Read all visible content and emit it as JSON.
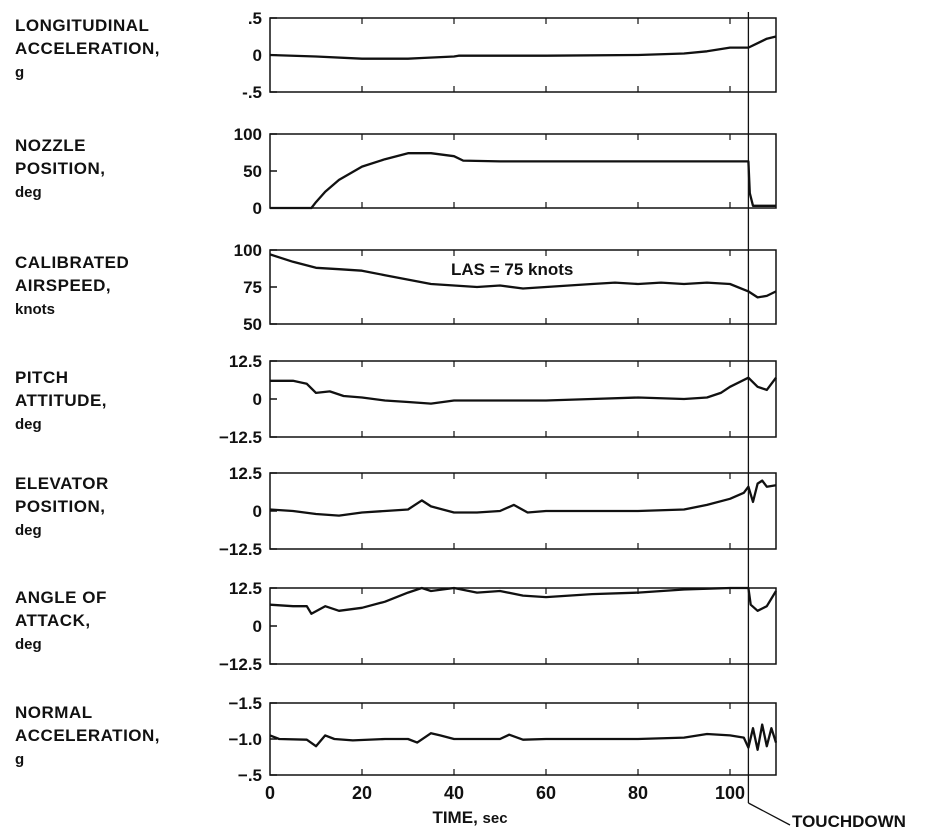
{
  "chart_data": {
    "type": "line",
    "x_axis": {
      "label": "TIME",
      "unit": "sec",
      "range": [
        0,
        110
      ],
      "ticks": [
        "0",
        "20",
        "40",
        "60",
        "80",
        "100"
      ]
    },
    "touchdown": {
      "time": 104,
      "label": "TOUCHDOWN"
    },
    "annotation": {
      "text": "LAS = 75 knots",
      "panel": 2,
      "x": 35,
      "y": 87
    },
    "panels": [
      {
        "label": [
          "LONGITUDINAL",
          "ACCELERATION,"
        ],
        "unit": "g",
        "ylim": [
          -0.5,
          0.5
        ],
        "inverted": false,
        "ticks": [
          [
            0.5,
            ".5"
          ],
          [
            0,
            "0"
          ],
          [
            -0.5,
            "-.5"
          ]
        ],
        "series": {
          "x": [
            0,
            10,
            20,
            30,
            33,
            40,
            41,
            60,
            80,
            90,
            95,
            100,
            104,
            106,
            108,
            110
          ],
          "y": [
            0,
            -0.02,
            -0.05,
            -0.05,
            -0.04,
            -0.02,
            -0.01,
            -0.01,
            0.0,
            0.02,
            0.05,
            0.1,
            0.1,
            0.16,
            0.22,
            0.25
          ]
        }
      },
      {
        "label": [
          "NOZZLE",
          "POSITION,"
        ],
        "unit": "deg",
        "ylim": [
          0,
          100
        ],
        "inverted": false,
        "ticks": [
          [
            100,
            "100"
          ],
          [
            50,
            "50"
          ],
          [
            0,
            "0"
          ]
        ],
        "series": {
          "x": [
            0,
            9,
            10,
            12,
            15,
            20,
            25,
            30,
            35,
            40,
            42,
            50,
            60,
            80,
            100,
            104,
            104.3,
            105,
            110
          ],
          "y": [
            0,
            0,
            8,
            22,
            38,
            56,
            66,
            74,
            74,
            70,
            64,
            63,
            63,
            63,
            63,
            63,
            20,
            3,
            3
          ]
        }
      },
      {
        "label": [
          "CALIBRATED",
          "AIRSPEED,"
        ],
        "unit": "knots",
        "ylim": [
          50,
          100
        ],
        "inverted": false,
        "ticks": [
          [
            100,
            "100"
          ],
          [
            75,
            "75"
          ],
          [
            50,
            "50"
          ]
        ],
        "series": {
          "x": [
            0,
            5,
            10,
            15,
            20,
            25,
            30,
            35,
            40,
            45,
            50,
            55,
            60,
            65,
            70,
            75,
            80,
            85,
            90,
            95,
            100,
            104,
            106,
            108,
            110
          ],
          "y": [
            97,
            92,
            88,
            87,
            86,
            83,
            80,
            77,
            76,
            75,
            76,
            74,
            75,
            76,
            77,
            78,
            77,
            78,
            77,
            78,
            77,
            72,
            68,
            69,
            72
          ]
        }
      },
      {
        "label": [
          "PITCH",
          "ATTITUDE,"
        ],
        "unit": "deg",
        "ylim": [
          -12.5,
          12.5
        ],
        "inverted": false,
        "ticks": [
          [
            12.5,
            "12.5"
          ],
          [
            0,
            "0"
          ],
          [
            -12.5,
            "−12.5"
          ]
        ],
        "series": {
          "x": [
            0,
            5,
            8,
            10,
            13,
            16,
            20,
            25,
            30,
            35,
            40,
            50,
            60,
            70,
            80,
            90,
            95,
            98,
            100,
            104,
            106,
            108,
            110
          ],
          "y": [
            6,
            6,
            5,
            2,
            2.5,
            1,
            0.5,
            -0.5,
            -1,
            -1.5,
            -0.5,
            -0.5,
            -0.5,
            0,
            0.5,
            0,
            0.5,
            2,
            4,
            7,
            4,
            3,
            7
          ]
        }
      },
      {
        "label": [
          "ELEVATOR",
          "POSITION,"
        ],
        "unit": "deg",
        "ylim": [
          -12.5,
          12.5
        ],
        "inverted": false,
        "ticks": [
          [
            12.5,
            "12.5"
          ],
          [
            0,
            "0"
          ],
          [
            -12.5,
            "−12.5"
          ]
        ],
        "series": {
          "x": [
            0,
            5,
            10,
            15,
            20,
            25,
            30,
            33,
            35,
            40,
            45,
            50,
            53,
            56,
            60,
            70,
            80,
            90,
            95,
            100,
            103,
            104,
            105,
            106,
            107,
            108,
            110
          ],
          "y": [
            0.5,
            0,
            -1,
            -1.5,
            -0.5,
            0,
            0.5,
            3.5,
            1.5,
            -0.5,
            -0.5,
            0,
            2,
            -0.5,
            0,
            0,
            0,
            0.5,
            2,
            4,
            6,
            8,
            3,
            9,
            10,
            8,
            8.5
          ]
        }
      },
      {
        "label": [
          "ANGLE OF",
          "ATTACK,"
        ],
        "unit": "deg",
        "ylim": [
          -12.5,
          12.5
        ],
        "inverted": false,
        "ticks": [
          [
            12.5,
            "12.5"
          ],
          [
            0,
            "0"
          ],
          [
            -12.5,
            "−12.5"
          ]
        ],
        "series": {
          "x": [
            0,
            5,
            8,
            9,
            12,
            15,
            20,
            25,
            30,
            33,
            35,
            40,
            45,
            50,
            55,
            60,
            70,
            80,
            90,
            100,
            104,
            104.5,
            106,
            108,
            110
          ],
          "y": [
            7,
            6.5,
            6.5,
            4,
            6.5,
            5,
            6,
            8,
            11,
            12.5,
            11.5,
            12.5,
            11,
            11.5,
            10,
            9.5,
            10.5,
            11,
            12,
            12.5,
            12.5,
            7,
            5,
            6.5,
            11.5
          ]
        }
      },
      {
        "label": [
          "NORMAL",
          "ACCELERATION,"
        ],
        "unit": "g",
        "ylim": [
          -1.5,
          -0.5
        ],
        "inverted": true,
        "ticks": [
          [
            -0.5,
            "−.5"
          ],
          [
            -1.0,
            "−1.0"
          ],
          [
            -1.5,
            "−1.5"
          ]
        ],
        "series": {
          "x": [
            0,
            2,
            8,
            10,
            12,
            14,
            18,
            25,
            30,
            32,
            35,
            37,
            40,
            50,
            52,
            55,
            60,
            70,
            80,
            90,
            95,
            100,
            103,
            104,
            105,
            106,
            107,
            108,
            109,
            110
          ],
          "y": [
            -1.05,
            -1.0,
            -0.99,
            -0.9,
            -1.05,
            -1.0,
            -0.98,
            -1.0,
            -1.0,
            -0.95,
            -1.08,
            -1.05,
            -1.0,
            -1.0,
            -1.06,
            -0.99,
            -1.0,
            -1.0,
            -1.0,
            -1.02,
            -1.07,
            -1.05,
            -1.02,
            -0.88,
            -1.15,
            -0.85,
            -1.2,
            -0.9,
            -1.15,
            -0.95
          ]
        }
      }
    ]
  }
}
